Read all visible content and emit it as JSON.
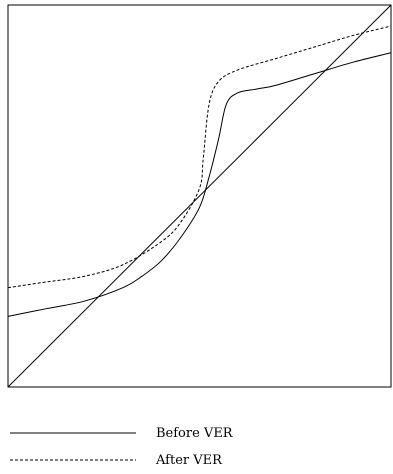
{
  "chart_data": {
    "type": "line",
    "title": "",
    "xlabel": "",
    "ylabel": "",
    "xlim": [
      0,
      1
    ],
    "ylim": [
      0,
      1
    ],
    "grid": false,
    "legend_position": "bottom",
    "series": [
      {
        "name": "Before VER",
        "style": "solid",
        "color": "#000000",
        "x": [
          0,
          0.1,
          0.2,
          0.3,
          0.35,
          0.4,
          0.45,
          0.5,
          0.525,
          0.55,
          0.57,
          0.6,
          0.65,
          0.7,
          0.8,
          0.9,
          1.0
        ],
        "y": [
          0.185,
          0.205,
          0.225,
          0.26,
          0.29,
          0.33,
          0.39,
          0.47,
          0.55,
          0.65,
          0.74,
          0.77,
          0.78,
          0.79,
          0.82,
          0.85,
          0.875
        ]
      },
      {
        "name": "After VER",
        "style": "dashed",
        "color": "#000000",
        "x": [
          0,
          0.1,
          0.2,
          0.3,
          0.4,
          0.45,
          0.5,
          0.51,
          0.525,
          0.55,
          0.6,
          0.7,
          0.8,
          0.9,
          1.0
        ],
        "y": [
          0.26,
          0.275,
          0.29,
          0.32,
          0.38,
          0.43,
          0.52,
          0.6,
          0.74,
          0.8,
          0.83,
          0.86,
          0.89,
          0.92,
          0.945
        ]
      },
      {
        "name": "",
        "style": "solid",
        "color": "#000000",
        "x": [
          0,
          1
        ],
        "y": [
          0,
          1
        ]
      }
    ]
  }
}
